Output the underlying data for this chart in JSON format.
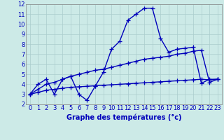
{
  "title": "Graphe des températures (°c)",
  "background_color": "#cceae7",
  "grid_color": "#aacccc",
  "line_color": "#0000bb",
  "xlim": [
    -0.5,
    23.5
  ],
  "ylim": [
    2,
    12
  ],
  "xticks": [
    0,
    1,
    2,
    3,
    4,
    5,
    6,
    7,
    8,
    9,
    10,
    11,
    12,
    13,
    14,
    15,
    16,
    17,
    18,
    19,
    20,
    21,
    22,
    23
  ],
  "yticks": [
    2,
    3,
    4,
    5,
    6,
    7,
    8,
    9,
    10,
    11,
    12
  ],
  "hours": [
    0,
    1,
    2,
    3,
    4,
    5,
    6,
    7,
    8,
    9,
    10,
    11,
    12,
    13,
    14,
    15,
    16,
    17,
    18,
    19,
    20,
    21,
    22,
    23
  ],
  "line1": [
    3.0,
    4.0,
    4.5,
    3.0,
    4.5,
    4.8,
    3.0,
    2.4,
    3.8,
    5.2,
    7.5,
    8.3,
    10.4,
    11.0,
    11.6,
    11.6,
    8.6,
    7.2,
    7.5,
    7.6,
    7.7,
    4.1,
    4.5,
    4.5
  ],
  "line2": [
    3.0,
    3.5,
    4.0,
    4.2,
    4.5,
    4.8,
    5.0,
    5.2,
    5.4,
    5.5,
    5.7,
    5.9,
    6.1,
    6.3,
    6.5,
    6.6,
    6.7,
    6.8,
    7.0,
    7.1,
    7.3,
    7.4,
    4.2,
    4.5
  ],
  "line3": [
    3.0,
    3.2,
    3.4,
    3.5,
    3.6,
    3.7,
    3.75,
    3.8,
    3.85,
    3.9,
    3.95,
    4.0,
    4.05,
    4.1,
    4.15,
    4.2,
    4.25,
    4.3,
    4.35,
    4.4,
    4.45,
    4.5,
    4.45,
    4.5
  ],
  "marker_size": 4.5,
  "linewidth": 1.0,
  "font_size_tick": 6.0,
  "font_size_label": 7.0
}
